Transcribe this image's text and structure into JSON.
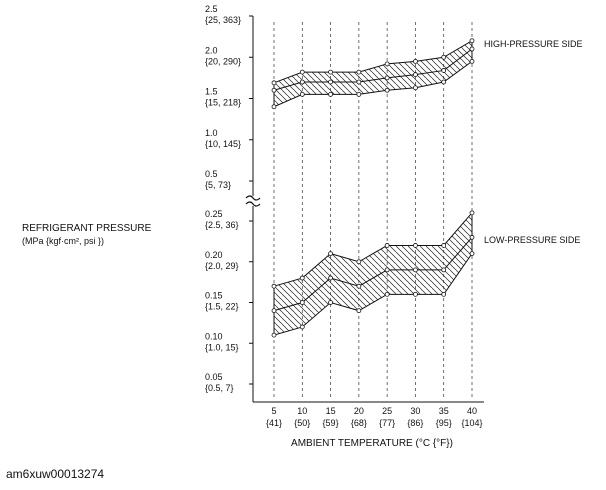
{
  "chart_data": {
    "type": "area",
    "xlabel": "AMBIENT TEMPERATURE",
    "xlabel_unit": "(°C {°F})",
    "ylabel": "REFRIGERANT PRESSURE",
    "ylabel_unit": "(MPa {kgf·cm², psi })",
    "x": [
      5,
      10,
      15,
      20,
      25,
      30,
      35,
      40
    ],
    "x_tick_labels_f": [
      "{41}",
      "{50}",
      "{59}",
      "{68}",
      "{77}",
      "{86}",
      "{95}",
      "{104}"
    ],
    "y_ticks_upper": [
      {
        "value": 2.5,
        "label": "2.5",
        "sub": "{25, 363}"
      },
      {
        "value": 2.0,
        "label": "2.0",
        "sub": "{20, 290}"
      },
      {
        "value": 1.5,
        "label": "1.5",
        "sub": "{15, 218}"
      },
      {
        "value": 1.0,
        "label": "1.0",
        "sub": "{10, 145}"
      },
      {
        "value": 0.5,
        "label": "0.5",
        "sub": "{5, 73}"
      }
    ],
    "y_ticks_lower": [
      {
        "value": 0.25,
        "label": "0.25",
        "sub": "{2.5, 36}"
      },
      {
        "value": 0.2,
        "label": "0.20",
        "sub": "{2.0, 29}"
      },
      {
        "value": 0.15,
        "label": "0.15",
        "sub": "{1.5, 22}"
      },
      {
        "value": 0.1,
        "label": "0.10",
        "sub": "{1.0, 15}"
      },
      {
        "value": 0.05,
        "label": "0.05",
        "sub": "{0.5, 7}"
      }
    ],
    "axis_break": true,
    "ylim_upper": [
      0.5,
      2.5
    ],
    "ylim_lower": [
      0.0,
      0.25
    ],
    "vertical_gridlines": "dashed",
    "series": [
      {
        "name": "HIGH-PRESSURE SIDE",
        "upper": [
          1.69,
          1.82,
          1.82,
          1.82,
          1.92,
          1.95,
          2.0,
          2.2
        ],
        "middle": [
          1.6,
          1.7,
          1.7,
          1.7,
          1.75,
          1.79,
          1.84,
          2.1
        ],
        "lower": [
          1.4,
          1.55,
          1.55,
          1.55,
          1.6,
          1.63,
          1.7,
          1.95
        ]
      },
      {
        "name": "LOW-PRESSURE SIDE",
        "upper": [
          0.17,
          0.18,
          0.21,
          0.2,
          0.22,
          0.22,
          0.22,
          0.26
        ],
        "middle": [
          0.14,
          0.15,
          0.18,
          0.17,
          0.19,
          0.19,
          0.19,
          0.23
        ],
        "lower": [
          0.11,
          0.12,
          0.15,
          0.14,
          0.16,
          0.16,
          0.16,
          0.21
        ]
      }
    ]
  },
  "figure_id": "am6xuw00013274"
}
